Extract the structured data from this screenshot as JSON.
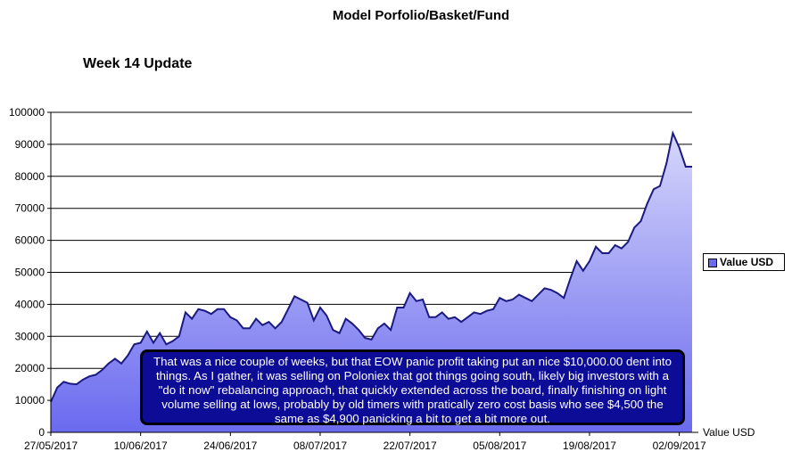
{
  "chart_data": {
    "type": "area",
    "title": "Model Porfolio/Basket/Fund",
    "subtitle": "Week 14 Update",
    "ylim": [
      0,
      100000
    ],
    "yticks": [
      0,
      10000,
      20000,
      30000,
      40000,
      50000,
      60000,
      70000,
      80000,
      90000,
      100000
    ],
    "xlim": [
      "27/05/2017",
      "04/09/2017"
    ],
    "xticks": [
      "27/05/2017",
      "10/06/2017",
      "24/06/2017",
      "08/07/2017",
      "22/07/2017",
      "05/08/2017",
      "19/08/2017",
      "02/09/2017"
    ],
    "grid": "horizontal",
    "legend_position": "right",
    "axis_series_label": "Value USD",
    "series": [
      {
        "name": "Value USD",
        "color": "#1a1a80",
        "fill_top": "#d6d6fb",
        "fill_bottom": "#6a6aef",
        "x": [
          "27/05/2017",
          "28/05/2017",
          "29/05/2017",
          "30/05/2017",
          "31/05/2017",
          "01/06/2017",
          "02/06/2017",
          "03/06/2017",
          "04/06/2017",
          "05/06/2017",
          "06/06/2017",
          "07/06/2017",
          "08/06/2017",
          "09/06/2017",
          "10/06/2017",
          "11/06/2017",
          "12/06/2017",
          "13/06/2017",
          "14/06/2017",
          "15/06/2017",
          "16/06/2017",
          "17/06/2017",
          "18/06/2017",
          "19/06/2017",
          "20/06/2017",
          "21/06/2017",
          "22/06/2017",
          "23/06/2017",
          "24/06/2017",
          "25/06/2017",
          "26/06/2017",
          "27/06/2017",
          "28/06/2017",
          "29/06/2017",
          "30/06/2017",
          "01/07/2017",
          "02/07/2017",
          "03/07/2017",
          "04/07/2017",
          "05/07/2017",
          "06/07/2017",
          "07/07/2017",
          "08/07/2017",
          "09/07/2017",
          "10/07/2017",
          "11/07/2017",
          "12/07/2017",
          "13/07/2017",
          "14/07/2017",
          "15/07/2017",
          "16/07/2017",
          "17/07/2017",
          "18/07/2017",
          "19/07/2017",
          "20/07/2017",
          "21/07/2017",
          "22/07/2017",
          "23/07/2017",
          "24/07/2017",
          "25/07/2017",
          "26/07/2017",
          "27/07/2017",
          "28/07/2017",
          "29/07/2017",
          "30/07/2017",
          "31/07/2017",
          "01/08/2017",
          "02/08/2017",
          "03/08/2017",
          "04/08/2017",
          "05/08/2017",
          "06/08/2017",
          "07/08/2017",
          "08/08/2017",
          "09/08/2017",
          "10/08/2017",
          "11/08/2017",
          "12/08/2017",
          "13/08/2017",
          "14/08/2017",
          "15/08/2017",
          "16/08/2017",
          "17/08/2017",
          "18/08/2017",
          "19/08/2017",
          "20/08/2017",
          "21/08/2017",
          "22/08/2017",
          "23/08/2017",
          "24/08/2017",
          "25/08/2017",
          "26/08/2017",
          "27/08/2017",
          "28/08/2017",
          "29/08/2017",
          "30/08/2017",
          "31/08/2017",
          "01/09/2017",
          "02/09/2017",
          "03/09/2017",
          "04/09/2017"
        ],
        "values": [
          9500,
          14000,
          15800,
          15200,
          15000,
          16500,
          17500,
          18000,
          19500,
          21500,
          23000,
          21500,
          24000,
          27500,
          28000,
          31500,
          28000,
          31000,
          27500,
          28500,
          30000,
          37500,
          35500,
          38500,
          38000,
          37000,
          38500,
          38500,
          36000,
          35000,
          32500,
          32500,
          35500,
          33500,
          34500,
          32500,
          34500,
          38500,
          42500,
          41500,
          40500,
          35000,
          39000,
          36500,
          32000,
          31000,
          35500,
          34000,
          32000,
          29500,
          29000,
          32500,
          34000,
          32000,
          39000,
          39000,
          43500,
          41000,
          41500,
          36000,
          36000,
          37500,
          35500,
          36000,
          34500,
          36000,
          37500,
          37000,
          38000,
          38500,
          42000,
          41000,
          41500,
          43000,
          42000,
          41000,
          43000,
          45000,
          44500,
          43500,
          42000,
          48000,
          53500,
          50500,
          53500,
          58000,
          56000,
          56000,
          58500,
          57500,
          59500,
          64000,
          66000,
          71500,
          76000,
          77000,
          84000,
          93500,
          89000,
          83000,
          83000
        ],
        "data_labels": []
      }
    ]
  },
  "annotation": {
    "text": "That was a nice couple of weeks, but that EOW panic profit taking put an nice $10,000.00 dent into things. As I gather, it was selling on Poloniex that got things going south, likely big investors with a \"do it now\" rebalancing approach, that quickly extended across the board, finally finishing on light volume selling at lows, probably by old timers with pratically zero cost basis who see $4,500 the same as $4,900 panicking a bit to get a bit more out."
  }
}
